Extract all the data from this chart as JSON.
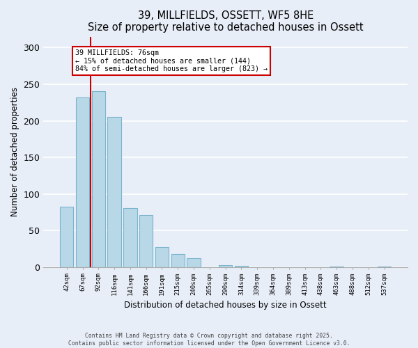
{
  "title": "39, MILLFIELDS, OSSETT, WF5 8HE",
  "subtitle": "Size of property relative to detached houses in Ossett",
  "xlabel": "Distribution of detached houses by size in Ossett",
  "ylabel": "Number of detached properties",
  "bar_labels": [
    "42sqm",
    "67sqm",
    "92sqm",
    "116sqm",
    "141sqm",
    "166sqm",
    "191sqm",
    "215sqm",
    "240sqm",
    "265sqm",
    "290sqm",
    "314sqm",
    "339sqm",
    "364sqm",
    "389sqm",
    "413sqm",
    "438sqm",
    "463sqm",
    "488sqm",
    "512sqm",
    "537sqm"
  ],
  "bar_values": [
    83,
    232,
    241,
    205,
    81,
    71,
    27,
    18,
    12,
    0,
    3,
    2,
    0,
    0,
    0,
    0,
    0,
    1,
    0,
    0,
    1
  ],
  "bar_color": "#b8d8e8",
  "bar_edge_color": "#7ab4cc",
  "vline_x": 1.5,
  "vline_color": "#cc0000",
  "annotation_title": "39 MILLFIELDS: 76sqm",
  "annotation_line1": "← 15% of detached houses are smaller (144)",
  "annotation_line2": "84% of semi-detached houses are larger (823) →",
  "annotation_box_facecolor": "#ffffff",
  "annotation_box_edgecolor": "#cc0000",
  "ylim": [
    0,
    315
  ],
  "yticks": [
    0,
    50,
    100,
    150,
    200,
    250,
    300
  ],
  "footer1": "Contains HM Land Registry data © Crown copyright and database right 2025.",
  "footer2": "Contains public sector information licensed under the Open Government Licence v3.0.",
  "bg_color": "#e8eef8"
}
